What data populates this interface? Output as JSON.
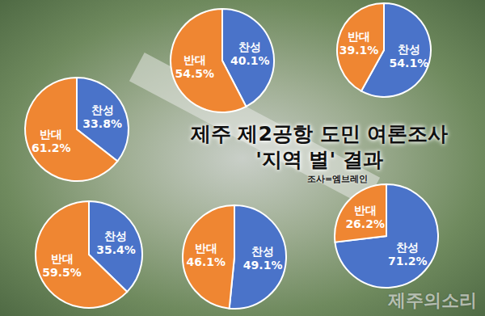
{
  "title": "제주 제2공항 도민 여론조사",
  "subtitle": "'지역 별' 결과",
  "source": "조사=엠브레인",
  "watermark": "제주의소리",
  "chart_data": [
    {
      "type": "pie",
      "categories": [
        "찬성",
        "반대"
      ],
      "values": [
        40.1,
        54.5
      ],
      "value_labels": [
        "40.1%",
        "54.5%"
      ],
      "colors": [
        "#4a73c9",
        "#ef8632"
      ],
      "data_labels": true
    },
    {
      "type": "pie",
      "categories": [
        "찬성",
        "반대"
      ],
      "values": [
        54.1,
        39.1
      ],
      "value_labels": [
        "54.1%",
        "39.1%"
      ],
      "colors": [
        "#4a73c9",
        "#ef8632"
      ],
      "data_labels": true
    },
    {
      "type": "pie",
      "categories": [
        "찬성",
        "반대"
      ],
      "values": [
        33.8,
        61.2
      ],
      "value_labels": [
        "33.8%",
        "61.2%"
      ],
      "colors": [
        "#4a73c9",
        "#ef8632"
      ],
      "data_labels": true
    },
    {
      "type": "pie",
      "categories": [
        "찬성",
        "반대"
      ],
      "values": [
        35.4,
        59.5
      ],
      "value_labels": [
        "35.4%",
        "59.5%"
      ],
      "colors": [
        "#4a73c9",
        "#ef8632"
      ],
      "data_labels": true
    },
    {
      "type": "pie",
      "categories": [
        "찬성",
        "반대"
      ],
      "values": [
        49.1,
        46.1
      ],
      "value_labels": [
        "49.1%",
        "46.1%"
      ],
      "colors": [
        "#4a73c9",
        "#ef8632"
      ],
      "data_labels": true
    },
    {
      "type": "pie",
      "categories": [
        "찬성",
        "반대"
      ],
      "values": [
        71.2,
        26.2
      ],
      "value_labels": [
        "71.2%",
        "26.2%"
      ],
      "colors": [
        "#4a73c9",
        "#ef8632"
      ],
      "data_labels": true
    }
  ]
}
